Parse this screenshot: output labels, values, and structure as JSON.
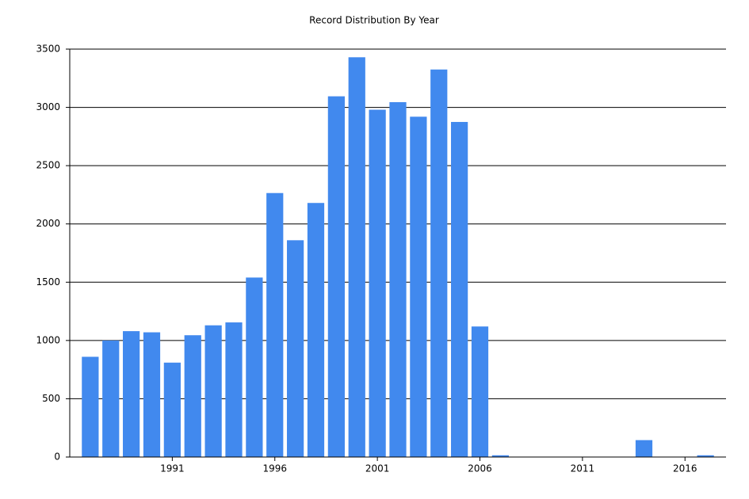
{
  "chart_data": {
    "type": "bar",
    "title": "Record Distribution By Year",
    "x": [
      1987,
      1988,
      1989,
      1990,
      1991,
      1992,
      1993,
      1994,
      1995,
      1996,
      1997,
      1998,
      1999,
      2000,
      2001,
      2002,
      2003,
      2004,
      2005,
      2006,
      2007,
      2014,
      2017
    ],
    "values": [
      860,
      1000,
      1080,
      1070,
      810,
      1045,
      1130,
      1155,
      1540,
      2265,
      1860,
      2180,
      3095,
      3430,
      2980,
      3045,
      2920,
      3325,
      2875,
      1120,
      15,
      145,
      15
    ],
    "color": "#4189ee",
    "xlim": [
      1986,
      2018
    ],
    "xticks": [
      1991,
      1996,
      2001,
      2006,
      2011,
      2016
    ],
    "ylim": [
      0,
      3500
    ],
    "yticks": [
      0,
      500,
      1000,
      1500,
      2000,
      2500,
      3000,
      3500
    ],
    "grid": true
  }
}
